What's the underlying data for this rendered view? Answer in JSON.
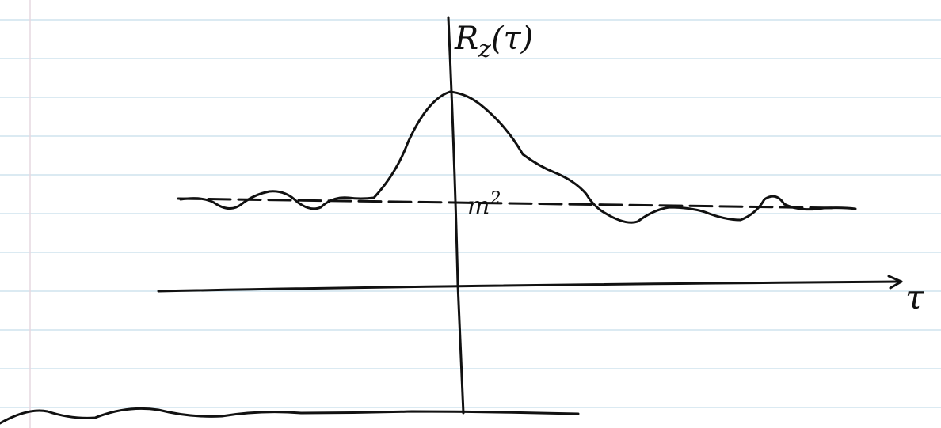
{
  "y_axis_label": {
    "symbol": "R",
    "subscript": "z",
    "argument": "(τ)"
  },
  "mean_label": {
    "symbol": "m",
    "superscript": "2"
  },
  "x_axis_label": "τ"
}
